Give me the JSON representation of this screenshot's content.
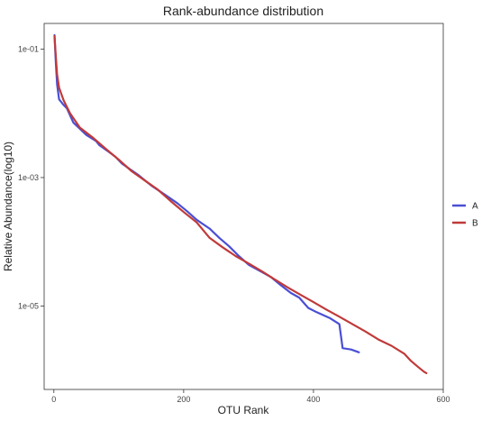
{
  "chart_data": {
    "type": "line",
    "title": "Rank-abundance distribution",
    "xlabel": "OTU Rank",
    "ylabel": "Relative Abundance(log10)",
    "xlim": [
      -15,
      600
    ],
    "ylim_log10": [
      -6.3,
      -0.6
    ],
    "y_scale": "log10",
    "grid": false,
    "legend_position": "right",
    "x_ticks": [
      {
        "value": 0,
        "label": "0"
      },
      {
        "value": 200,
        "label": "200"
      },
      {
        "value": 400,
        "label": "400"
      },
      {
        "value": 600,
        "label": "600"
      }
    ],
    "y_ticks": [
      {
        "value": 0.1,
        "label": "1e-01"
      },
      {
        "value": 0.001,
        "label": "1e-03"
      },
      {
        "value": 1e-05,
        "label": "1e-05"
      }
    ],
    "series": [
      {
        "name": "A",
        "color": "#4a4fd4",
        "points": [
          [
            1,
            0.165
          ],
          [
            3,
            0.06
          ],
          [
            5,
            0.028
          ],
          [
            8,
            0.0165
          ],
          [
            15,
            0.0135
          ],
          [
            20,
            0.012
          ],
          [
            30,
            0.0072
          ],
          [
            50,
            0.0046
          ],
          [
            65,
            0.0037
          ],
          [
            70,
            0.0032
          ],
          [
            85,
            0.0025
          ],
          [
            95,
            0.0021
          ],
          [
            105,
            0.00165
          ],
          [
            115,
            0.0014
          ],
          [
            130,
            0.0011
          ],
          [
            150,
            0.00075
          ],
          [
            170,
            0.00055
          ],
          [
            190,
            0.0004
          ],
          [
            205,
            0.0003
          ],
          [
            220,
            0.00022
          ],
          [
            240,
            0.00016
          ],
          [
            255,
            0.000115
          ],
          [
            270,
            8.5e-05
          ],
          [
            285,
            6e-05
          ],
          [
            300,
            4.4e-05
          ],
          [
            320,
            3.4e-05
          ],
          [
            335,
            2.8e-05
          ],
          [
            350,
            2.1e-05
          ],
          [
            365,
            1.6e-05
          ],
          [
            378,
            1.35e-05
          ],
          [
            392,
            9.3e-06
          ],
          [
            405,
            8e-06
          ],
          [
            425,
            6.5e-06
          ],
          [
            440,
            5.2e-06
          ],
          [
            445,
            2.2e-06
          ],
          [
            458,
            2.1e-06
          ],
          [
            470,
            1.9e-06
          ]
        ]
      },
      {
        "name": "B",
        "color": "#c03a3a",
        "points": [
          [
            1,
            0.16
          ],
          [
            3,
            0.075
          ],
          [
            5,
            0.04
          ],
          [
            8,
            0.025
          ],
          [
            15,
            0.016
          ],
          [
            25,
            0.01
          ],
          [
            40,
            0.006
          ],
          [
            60,
            0.0042
          ],
          [
            80,
            0.0028
          ],
          [
            100,
            0.0019
          ],
          [
            120,
            0.00125
          ],
          [
            140,
            0.0009
          ],
          [
            160,
            0.00065
          ],
          [
            180,
            0.00043
          ],
          [
            200,
            0.00029
          ],
          [
            220,
            0.0002
          ],
          [
            240,
            0.000115
          ],
          [
            260,
            8.2e-05
          ],
          [
            280,
            6e-05
          ],
          [
            300,
            4.6e-05
          ],
          [
            320,
            3.5e-05
          ],
          [
            340,
            2.6e-05
          ],
          [
            360,
            1.95e-05
          ],
          [
            380,
            1.5e-05
          ],
          [
            400,
            1.15e-05
          ],
          [
            420,
            8.8e-06
          ],
          [
            440,
            6.8e-06
          ],
          [
            460,
            5.2e-06
          ],
          [
            480,
            4e-06
          ],
          [
            500,
            3e-06
          ],
          [
            520,
            2.4e-06
          ],
          [
            540,
            1.8e-06
          ],
          [
            550,
            1.4e-06
          ],
          [
            560,
            1.15e-06
          ],
          [
            570,
            9.5e-07
          ],
          [
            574,
            9e-07
          ]
        ]
      }
    ]
  }
}
